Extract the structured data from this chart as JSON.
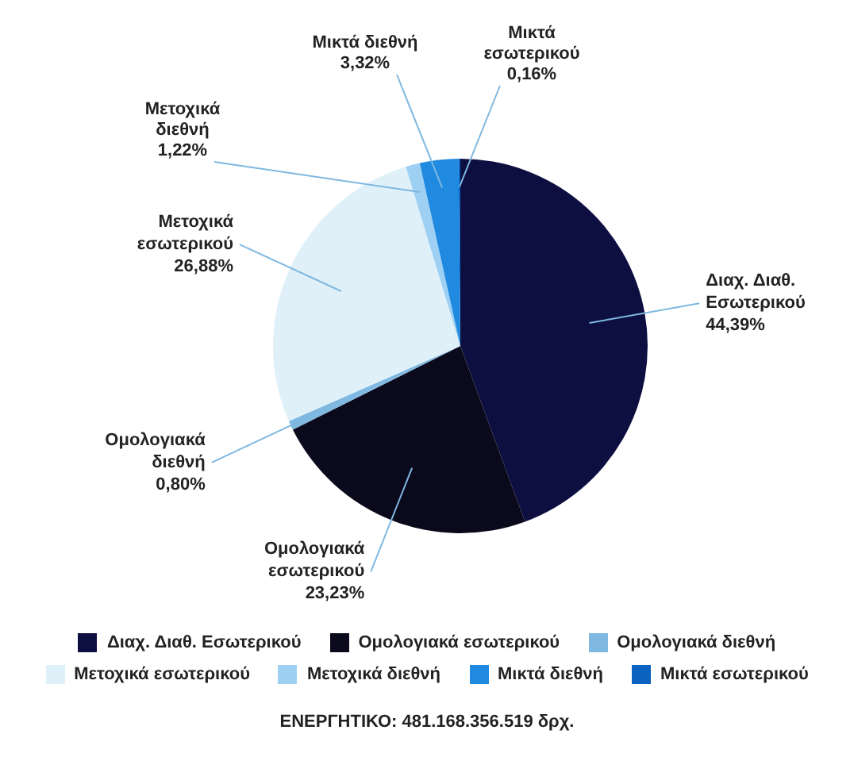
{
  "chart_data": {
    "type": "pie",
    "categories": [
      "Διαχ. Διαθ. Εσωτερικού",
      "Ομολογιακά εσωτερικού",
      "Ομολογιακά διεθνή",
      "Μετοχικά εσωτερικού",
      "Μετοχικά διεθνή",
      "Μικτά διεθνή",
      "Μικτά εσωτερικού"
    ],
    "values": [
      44.39,
      23.23,
      0.8,
      26.88,
      1.22,
      3.32,
      0.16
    ],
    "value_labels": [
      "44,39%",
      "23,23%",
      "0,80%",
      "26,88%",
      "1,22%",
      "3,32%",
      "0,16%"
    ],
    "colors": [
      "#0c0f40",
      "#0a0a1c",
      "#7fb8e0",
      "#dff0f9",
      "#9dd0f2",
      "#1f8ae0",
      "#0b62c0"
    ],
    "legend": "bottom",
    "annotations": [
      "ΕΝΕΡΓΗΤΙΚΟ: 481.168.356.519 δρχ."
    ]
  }
}
